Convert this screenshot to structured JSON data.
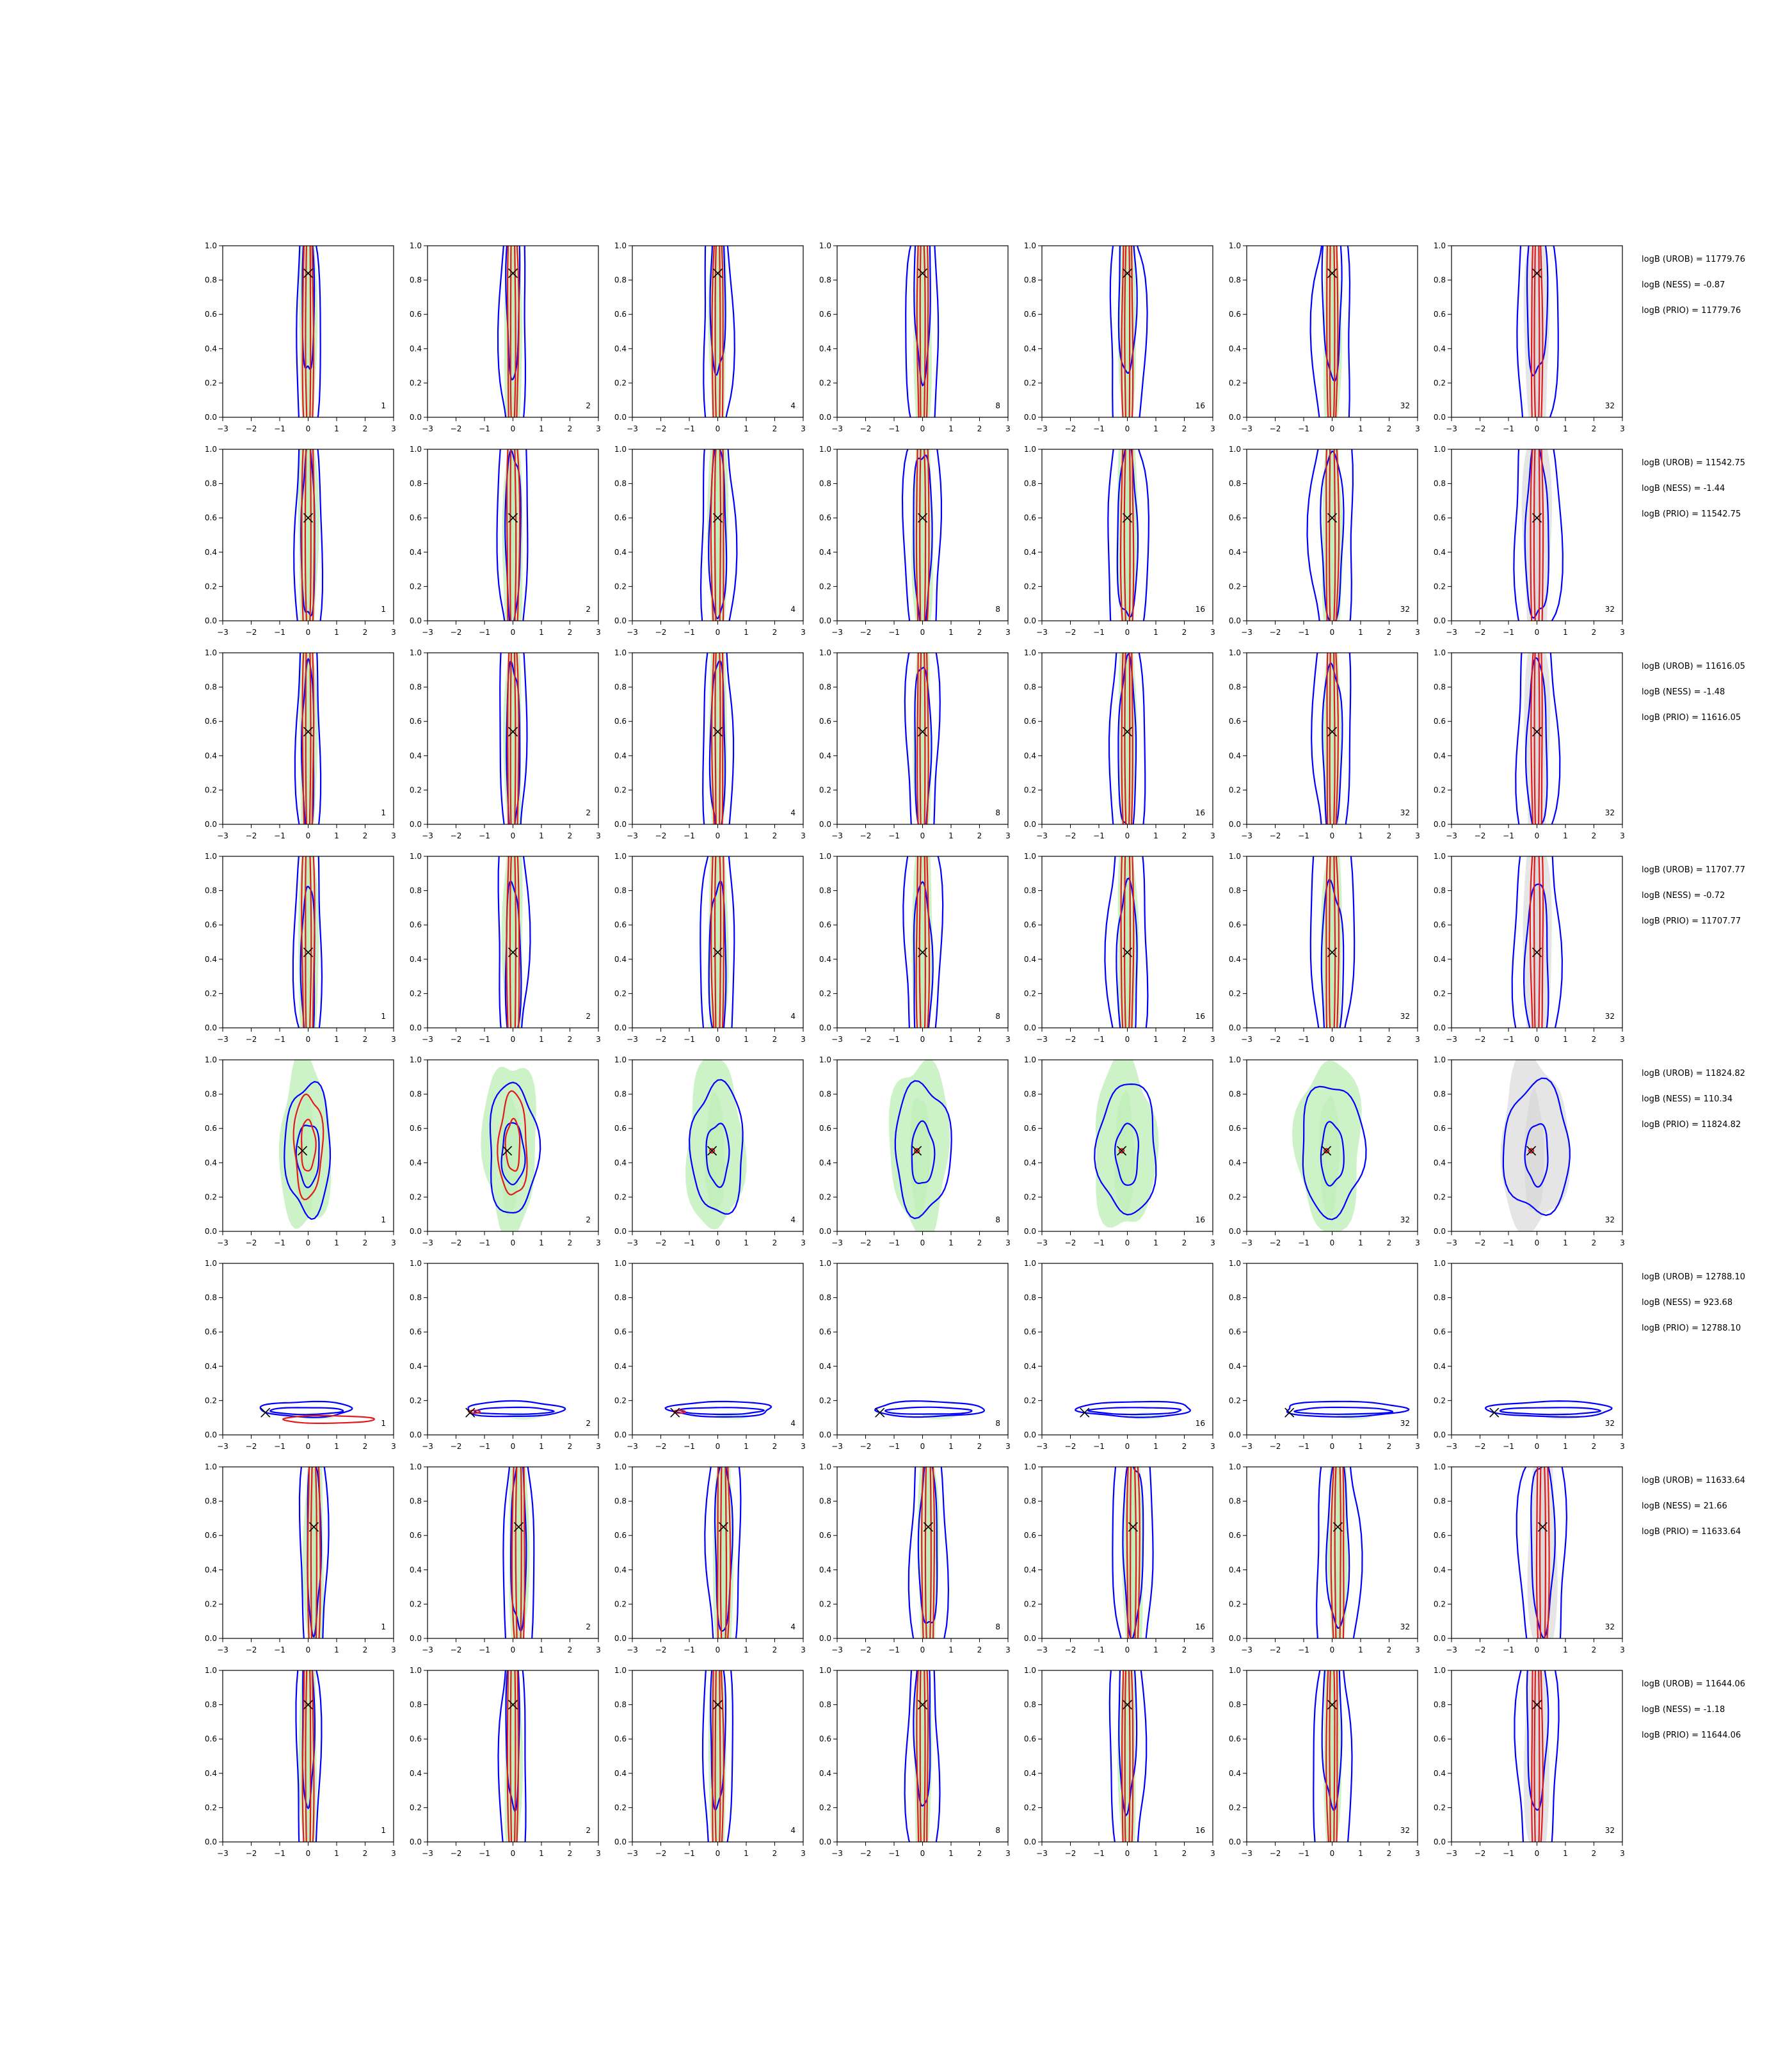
{
  "chart_data": {
    "type": "contour-grid",
    "title": "",
    "xlabel": "",
    "ylabel": "",
    "xlim": [
      -3,
      3
    ],
    "ylim": [
      0,
      1
    ],
    "xticks": [
      "−3",
      "−2",
      "−1",
      "0",
      "1",
      "2",
      "3"
    ],
    "yticks": [
      "0.0",
      "0.2",
      "0.4",
      "0.6",
      "0.8",
      "1.0"
    ],
    "grid": false,
    "column_labels": [
      "1",
      "2",
      "4",
      "8",
      "16",
      "32",
      "32"
    ],
    "colors": {
      "blue": "#0000ff",
      "red": "#e31a1c",
      "green": "#b8ecb0",
      "grey": "#cfcfcf",
      "marker": "#000000"
    },
    "rows": [
      {
        "marker": [
          0.0,
          0.84
        ],
        "spread": 0.35,
        "type": "vertical",
        "logB": [
          "logB (UROB) = 11779.76",
          "logB (NESS) = -0.87",
          "logB (PRIO) = 11779.76"
        ]
      },
      {
        "marker": [
          0.0,
          0.6
        ],
        "spread": 0.4,
        "type": "vertical",
        "logB": [
          "logB (UROB) = 11542.75",
          "logB (NESS) = -1.44",
          "logB (PRIO) = 11542.75"
        ]
      },
      {
        "marker": [
          0.0,
          0.54
        ],
        "spread": 0.35,
        "type": "vertical",
        "logB": [
          "logB (UROB) = 11616.05",
          "logB (NESS) = -1.48",
          "logB (PRIO) = 11616.05"
        ]
      },
      {
        "marker": [
          0.0,
          0.44
        ],
        "spread": 0.4,
        "type": "vertical",
        "logB": [
          "logB (UROB) = 11707.77",
          "logB (NESS) = -0.72",
          "logB (PRIO) = 11707.77"
        ]
      },
      {
        "marker": [
          -0.2,
          0.47
        ],
        "spread": 0.6,
        "type": "blob",
        "logB": [
          "logB (UROB) = 11824.82",
          "logB (NESS) = 110.34",
          "logB (PRIO) = 11824.82"
        ]
      },
      {
        "marker": [
          -1.5,
          0.13
        ],
        "spread": 1.5,
        "type": "horizontal",
        "logB": [
          "logB (UROB) = 12788.10",
          "logB (NESS) = 923.68",
          "logB (PRIO) = 12788.10"
        ]
      },
      {
        "marker": [
          0.2,
          0.65
        ],
        "spread": 0.4,
        "type": "vertical",
        "logB": [
          "logB (UROB) = 11633.64",
          "logB (NESS) = 21.66",
          "logB (PRIO) = 11633.64"
        ]
      },
      {
        "marker": [
          0.0,
          0.8
        ],
        "spread": 0.35,
        "type": "vertical",
        "logB": [
          "logB (UROB) = 11644.06",
          "logB (NESS) = -1.18",
          "logB (PRIO) = 11644.06"
        ]
      }
    ]
  }
}
